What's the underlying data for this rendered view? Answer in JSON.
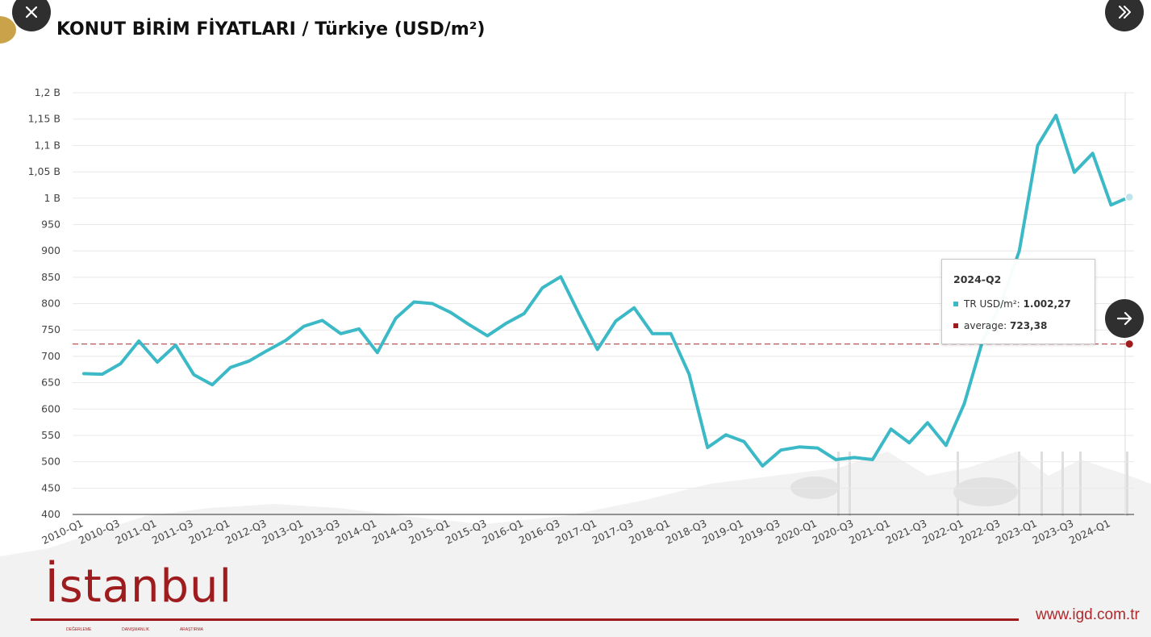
{
  "title": "KONUT BİRİM FİYATLARI / Türkiye (USD/m²)",
  "colors": {
    "series": "#3cb9c6",
    "average": "#9e1b1e",
    "logo": "#9e1b1e"
  },
  "icons": {
    "close": "close-icon",
    "expand": "double-chevron-right-icon",
    "next": "arrow-right-icon"
  },
  "tooltip": {
    "period": "2024-Q2",
    "series_label": "TR USD/m²:",
    "series_value": "1.002,27",
    "average_label": "average:",
    "average_value": "723,38"
  },
  "brand": {
    "logo": "İstanbul",
    "tagline": [
      "DEĞERLEME",
      "DANIŞMANLIK",
      "ARAŞTIRMA"
    ],
    "website": "www.igd.com.tr"
  },
  "chart_data": {
    "type": "line",
    "title": "KONUT BİRİM FİYATLARI / Türkiye (USD/m²)",
    "y_ticks": [
      {
        "v": 400,
        "label": "400"
      },
      {
        "v": 450,
        "label": "450"
      },
      {
        "v": 500,
        "label": "500"
      },
      {
        "v": 550,
        "label": "550"
      },
      {
        "v": 600,
        "label": "600"
      },
      {
        "v": 650,
        "label": "650"
      },
      {
        "v": 700,
        "label": "700"
      },
      {
        "v": 750,
        "label": "750"
      },
      {
        "v": 800,
        "label": "800"
      },
      {
        "v": 850,
        "label": "850"
      },
      {
        "v": 900,
        "label": "900"
      },
      {
        "v": 950,
        "label": "950"
      },
      {
        "v": 1000,
        "label": "1 B"
      },
      {
        "v": 1050,
        "label": "1,05 B"
      },
      {
        "v": 1100,
        "label": "1,1 B"
      },
      {
        "v": 1150,
        "label": "1,15 B"
      },
      {
        "v": 1200,
        "label": "1,2 B"
      }
    ],
    "ylim": [
      400,
      1200
    ],
    "grid": true,
    "x_tick_labels": [
      "2010-Q1",
      "2010-Q3",
      "2011-Q1",
      "2011-Q3",
      "2012-Q1",
      "2012-Q3",
      "2013-Q1",
      "2013-Q3",
      "2014-Q1",
      "2014-Q3",
      "2015-Q1",
      "2015-Q3",
      "2016-Q1",
      "2016-Q3",
      "2017-Q1",
      "2017-Q3",
      "2018-Q1",
      "2018-Q3",
      "2019-Q1",
      "2019-Q3",
      "2020-Q1",
      "2020-Q3",
      "2021-Q1",
      "2021-Q3",
      "2022-Q1",
      "2022-Q3",
      "2023-Q1",
      "2023-Q3",
      "2024-Q1"
    ],
    "categories": [
      "2010-Q1",
      "2010-Q2",
      "2010-Q3",
      "2010-Q4",
      "2011-Q1",
      "2011-Q2",
      "2011-Q3",
      "2011-Q4",
      "2012-Q1",
      "2012-Q2",
      "2012-Q3",
      "2012-Q4",
      "2013-Q1",
      "2013-Q2",
      "2013-Q3",
      "2013-Q4",
      "2014-Q1",
      "2014-Q2",
      "2014-Q3",
      "2014-Q4",
      "2015-Q1",
      "2015-Q2",
      "2015-Q3",
      "2015-Q4",
      "2016-Q1",
      "2016-Q2",
      "2016-Q3",
      "2016-Q4",
      "2017-Q1",
      "2017-Q2",
      "2017-Q3",
      "2017-Q4",
      "2018-Q1",
      "2018-Q2",
      "2018-Q3",
      "2018-Q4",
      "2019-Q1",
      "2019-Q2",
      "2019-Q3",
      "2019-Q4",
      "2020-Q1",
      "2020-Q2",
      "2020-Q3",
      "2020-Q4",
      "2021-Q1",
      "2021-Q2",
      "2021-Q3",
      "2021-Q4",
      "2022-Q1",
      "2022-Q2",
      "2022-Q3",
      "2022-Q4",
      "2023-Q1",
      "2023-Q2",
      "2023-Q3",
      "2023-Q4",
      "2024-Q1",
      "2024-Q2"
    ],
    "series": [
      {
        "name": "TR USD/m²",
        "values": [
          667,
          666,
          686,
          729,
          689,
          721,
          665,
          646,
          679,
          691,
          711,
          730,
          757,
          768,
          743,
          752,
          707,
          772,
          803,
          800,
          783,
          760,
          739,
          762,
          781,
          830,
          851,
          780,
          713,
          767,
          792,
          743,
          743,
          666,
          527,
          551,
          538,
          492,
          522,
          528,
          526,
          504,
          508,
          504,
          562,
          536,
          574,
          531,
          610,
          730,
          800,
          900,
          1100,
          1157,
          1049,
          1085,
          987,
          1002
        ]
      },
      {
        "name": "average",
        "value": 723.38,
        "style": "dashed"
      }
    ]
  }
}
